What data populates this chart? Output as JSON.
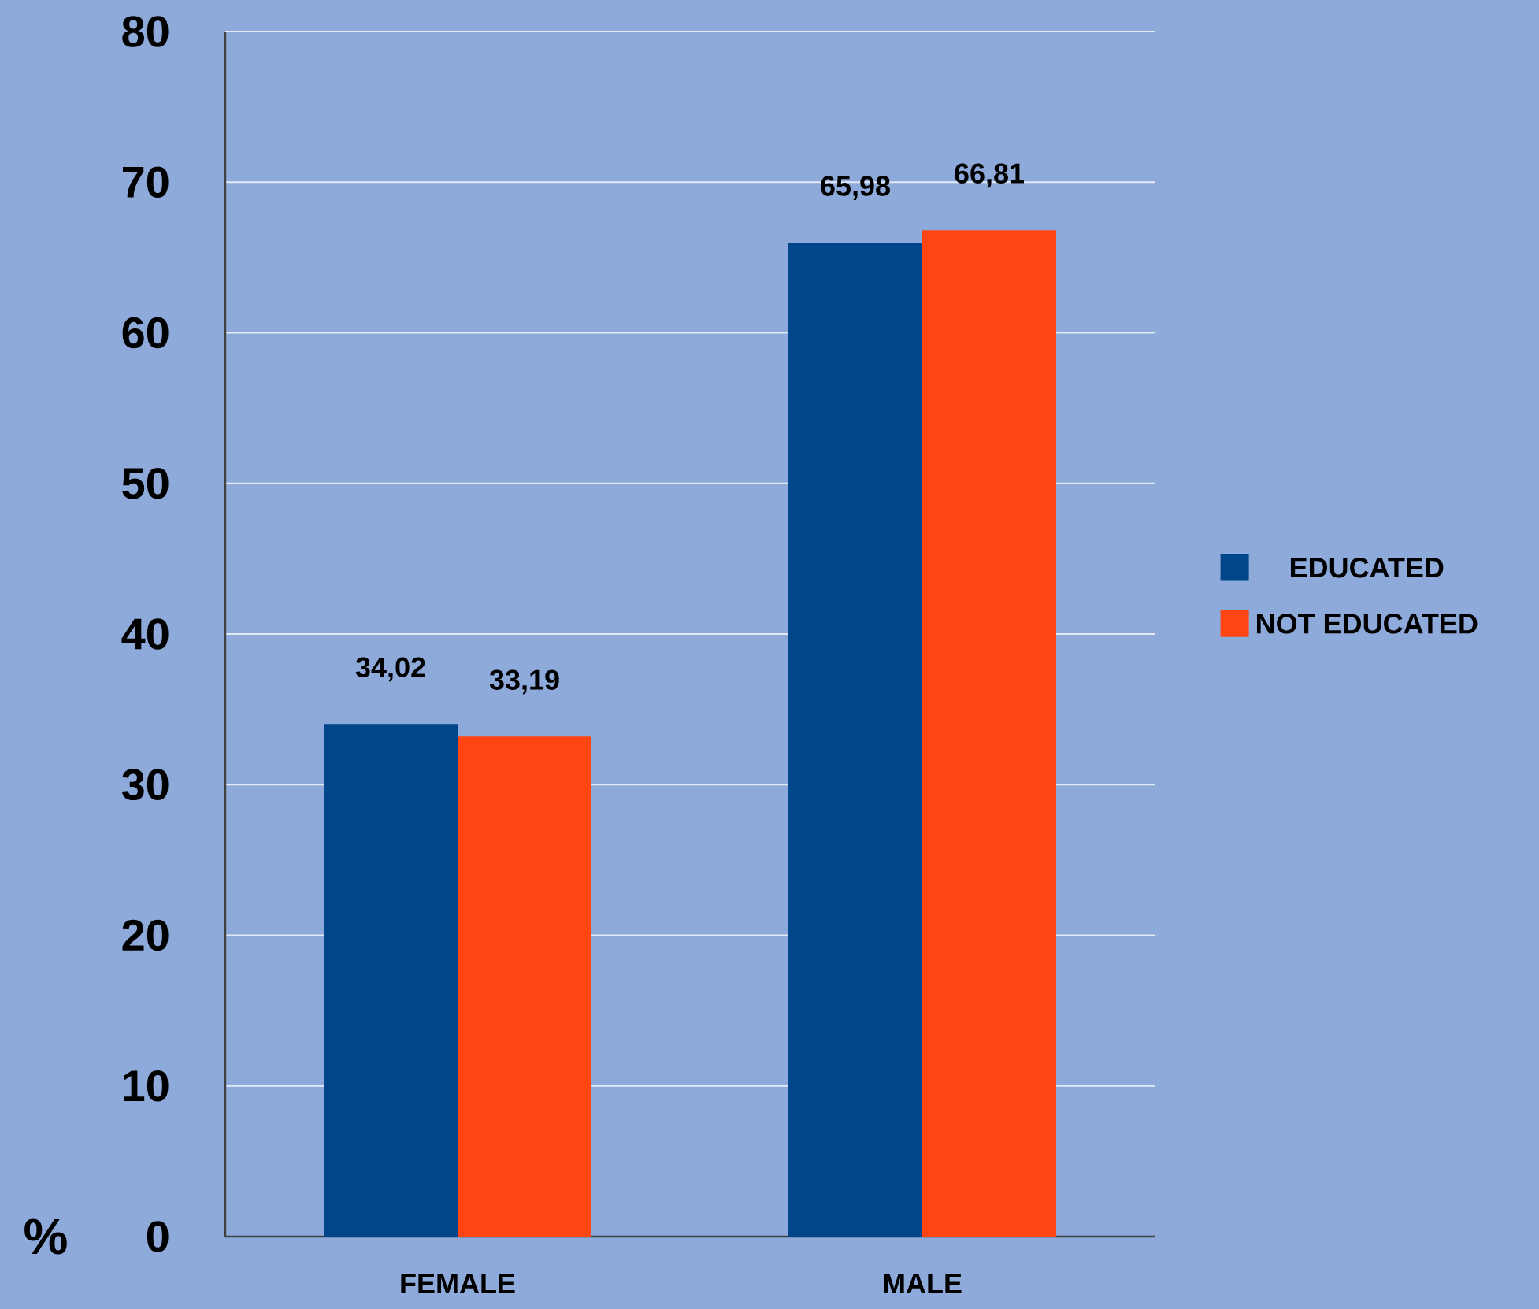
{
  "chart_data": {
    "type": "bar",
    "ylabel": "%",
    "categories": [
      "FEMALE",
      "MALE"
    ],
    "series": [
      {
        "name": "EDUCATED",
        "color": "#00468b",
        "values": [
          34.02,
          65.98
        ],
        "value_labels": [
          "34,02",
          "65,98"
        ]
      },
      {
        "name": "NOT EDUCATED",
        "color": "#ff4511",
        "values": [
          33.19,
          66.81
        ],
        "value_labels": [
          "33,19",
          "66,81"
        ]
      }
    ],
    "ylim": [
      0,
      80
    ],
    "yticks": [
      0,
      10,
      20,
      30,
      40,
      50,
      60,
      70,
      80
    ],
    "grid": "y",
    "legend": "right"
  }
}
